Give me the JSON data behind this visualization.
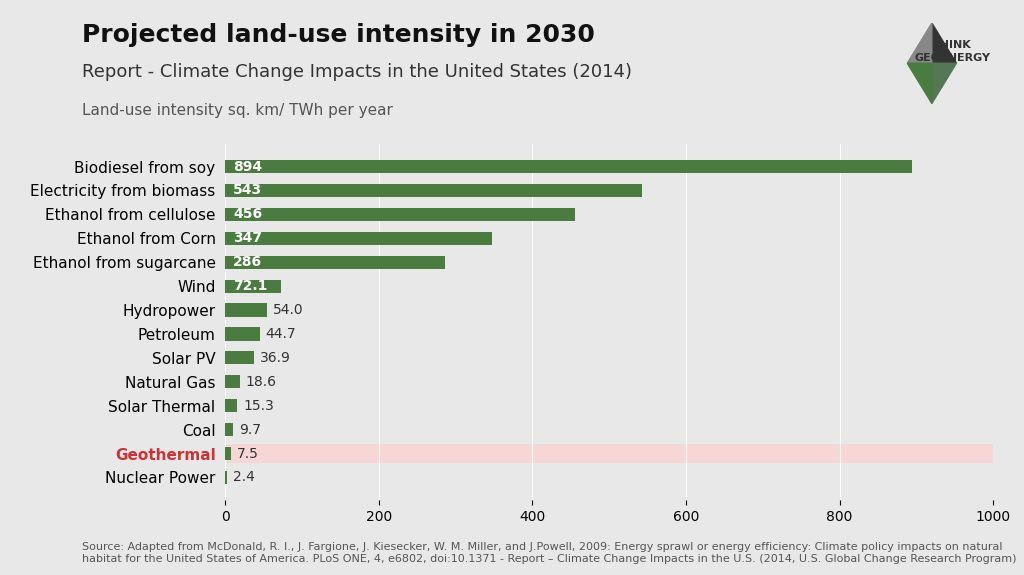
{
  "title": "Projected land-use intensity in 2030",
  "subtitle": "Report - Climate Change Impacts in the United States (2014)",
  "ylabel_label": "Land-use intensity sq. km/ TWh per year",
  "source_text": "Source: Adapted from McDonald, R. I., J. Fargione, J. Kiesecker, W. M. Miller, and J.Powell, 2009: Energy sprawl or energy efficiency: Climate policy impacts on natural\nhabitat for the United States of America. PLoS ONE, 4, e6802, doi:10.1371 - Report – Climate Change Impacts in the U.S. (2014, U.S. Global Change Research Program)",
  "categories": [
    "Nuclear Power",
    "Geothermal",
    "Coal",
    "Solar Thermal",
    "Natural Gas",
    "Solar PV",
    "Petroleum",
    "Hydropower",
    "Wind",
    "Ethanol from sugarcane",
    "Ethanol from Corn",
    "Ethanol from cellulose",
    "Electricity from biomass",
    "Biodiesel from soy"
  ],
  "values": [
    2.4,
    7.5,
    9.7,
    15.3,
    18.6,
    36.9,
    44.7,
    54.0,
    72.1,
    286,
    347,
    456,
    543,
    894
  ],
  "bar_colors": [
    "#4a7c3f",
    "#f2b8b8",
    "#4a7c3f",
    "#4a7c3f",
    "#4a7c3f",
    "#4a7c3f",
    "#4a7c3f",
    "#4a7c3f",
    "#4a7c3f",
    "#4a7c3f",
    "#4a7c3f",
    "#4a7c3f",
    "#4a7c3f",
    "#4a7c3f"
  ],
  "geothermal_highlight_color": "#f7d6d6",
  "geothermal_bar_color": "#4a7c3f",
  "geothermal_label_color": "#cc3333",
  "background_color": "#e8e8e8",
  "bar_label_color_dark": "#ffffff",
  "bar_label_color_light": "#333333",
  "xlim": [
    0,
    1000
  ],
  "xticks": [
    0,
    200,
    400,
    600,
    800,
    1000
  ],
  "title_fontsize": 18,
  "subtitle_fontsize": 13,
  "axis_label_fontsize": 11,
  "bar_label_fontsize": 10,
  "source_fontsize": 8
}
